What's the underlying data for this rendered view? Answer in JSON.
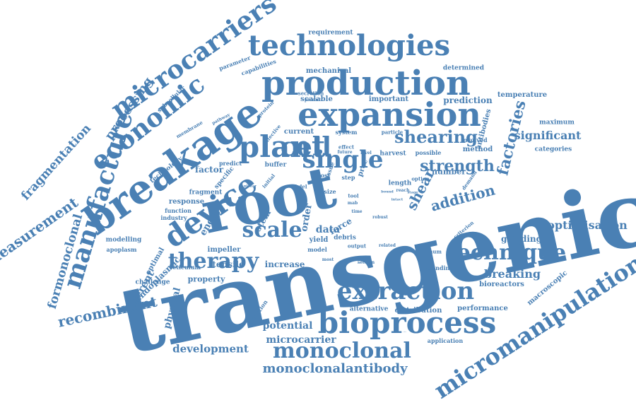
{
  "color": "#4a80b4",
  "words": [
    {
      "text": "transgenic"
    },
    {
      "text": "root"
    },
    {
      "text": "breakage"
    },
    {
      "text": "production"
    },
    {
      "text": "expansion"
    },
    {
      "text": "technologies"
    },
    {
      "text": "bioprocess"
    },
    {
      "text": "extraction"
    },
    {
      "text": "technique"
    },
    {
      "text": "plant"
    },
    {
      "text": "device"
    },
    {
      "text": "cell"
    },
    {
      "text": "single"
    },
    {
      "text": "scale"
    },
    {
      "text": "therapy"
    },
    {
      "text": "manufacture"
    },
    {
      "text": "economic"
    },
    {
      "text": "microcarriers"
    },
    {
      "text": "monoclonal"
    },
    {
      "text": "micromanipulation"
    },
    {
      "text": "shearing"
    },
    {
      "text": "strength"
    },
    {
      "text": "factories"
    },
    {
      "text": "measurement"
    },
    {
      "text": "fragmentation"
    },
    {
      "text": "formonoclonal"
    },
    {
      "text": "recombinant"
    },
    {
      "text": "processing"
    },
    {
      "text": "monoclonalantibody"
    },
    {
      "text": "microcarrier"
    },
    {
      "text": "development"
    },
    {
      "text": "optimisation"
    },
    {
      "text": "addition"
    },
    {
      "text": "shear"
    },
    {
      "text": "significant"
    },
    {
      "text": "breaking"
    },
    {
      "text": "potential"
    },
    {
      "text": "requirement"
    },
    {
      "text": "mechanical"
    },
    {
      "text": "determined"
    },
    {
      "text": "parameter"
    },
    {
      "text": "capabilities"
    },
    {
      "text": "scalable"
    },
    {
      "text": "important"
    },
    {
      "text": "prediction"
    },
    {
      "text": "temperature"
    },
    {
      "text": "subcellular"
    },
    {
      "text": "membrane"
    },
    {
      "text": "secretion"
    },
    {
      "text": "product"
    },
    {
      "text": "pathway"
    },
    {
      "text": "protein"
    },
    {
      "text": "current"
    },
    {
      "text": "effective"
    },
    {
      "text": "system"
    },
    {
      "text": "particle"
    },
    {
      "text": "antibodies"
    },
    {
      "text": "maximum"
    },
    {
      "text": "harvest"
    },
    {
      "text": "possible"
    },
    {
      "text": "method"
    },
    {
      "text": "involved"
    },
    {
      "text": "categories"
    },
    {
      "text": "effect"
    },
    {
      "text": "future"
    },
    {
      "text": "level"
    },
    {
      "text": "technology"
    },
    {
      "text": "predict"
    },
    {
      "text": "factor"
    },
    {
      "text": "buffer"
    },
    {
      "text": "cost"
    },
    {
      "text": "tissue"
    },
    {
      "text": "step"
    },
    {
      "text": "proc"
    },
    {
      "text": "number"
    },
    {
      "text": "demand"
    },
    {
      "text": "option"
    },
    {
      "text": "length"
    },
    {
      "text": "reach"
    },
    {
      "text": "fragment"
    },
    {
      "text": "response"
    },
    {
      "text": "function"
    },
    {
      "text": "industry"
    },
    {
      "text": "specific"
    },
    {
      "text": "energy"
    },
    {
      "text": "stem"
    },
    {
      "text": "order"
    },
    {
      "text": "hdel"
    },
    {
      "text": "size"
    },
    {
      "text": "tool"
    },
    {
      "text": "mab"
    },
    {
      "text": "time"
    },
    {
      "text": "force"
    },
    {
      "text": "data"
    },
    {
      "text": "yield"
    },
    {
      "text": "debris"
    },
    {
      "text": "output"
    },
    {
      "text": "model"
    },
    {
      "text": "impeller"
    },
    {
      "text": "tensile"
    },
    {
      "text": "increase"
    },
    {
      "text": "section"
    },
    {
      "text": "related"
    },
    {
      "text": "minimum"
    },
    {
      "text": "criterion"
    },
    {
      "text": "grinding"
    },
    {
      "text": "modelling"
    },
    {
      "text": "apoplasm"
    },
    {
      "text": "optimal"
    },
    {
      "text": "reticulum"
    },
    {
      "text": "endoplasmic"
    },
    {
      "text": "different"
    },
    {
      "text": "physical"
    },
    {
      "text": "challenge"
    },
    {
      "text": "property"
    },
    {
      "text": "wounding"
    },
    {
      "text": "bioreactors"
    },
    {
      "text": "macroscopic"
    },
    {
      "text": "performance"
    },
    {
      "text": "alternative"
    },
    {
      "text": "distribution"
    },
    {
      "text": "reduction"
    },
    {
      "text": "application"
    },
    {
      "text": "most"
    },
    {
      "text": "robust"
    },
    {
      "text": "initial"
    },
    {
      "text": "biotech"
    },
    {
      "text": "planar"
    },
    {
      "text": "intact"
    },
    {
      "text": "bound"
    },
    {
      "text": "stage"
    }
  ]
}
